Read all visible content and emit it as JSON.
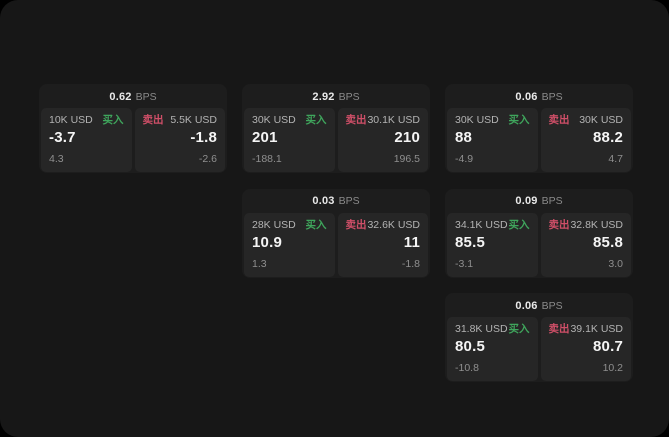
{
  "labels": {
    "bps_unit": "BPS",
    "buy": "买入",
    "sell": "卖出"
  },
  "colors": {
    "window_bg": "#171717",
    "card_bg": "#1d1d1d",
    "panel_bg": "#262626",
    "buy_green": "#3fa55c",
    "sell_red": "#d04f68"
  },
  "cards": [
    {
      "col": 1,
      "row": 1,
      "bps": "0.62",
      "buy": {
        "size": "10K USD",
        "value": "-3.7",
        "sub": "4.3"
      },
      "sell": {
        "size": "5.5K USD",
        "value": "-1.8",
        "sub": "-2.6"
      }
    },
    {
      "col": 2,
      "row": 1,
      "bps": "2.92",
      "buy": {
        "size": "30K USD",
        "value": "201",
        "sub": "-188.1"
      },
      "sell": {
        "size": "30.1K USD",
        "value": "210",
        "sub": "196.5"
      }
    },
    {
      "col": 3,
      "row": 1,
      "bps": "0.06",
      "buy": {
        "size": "30K USD",
        "value": "88",
        "sub": "-4.9"
      },
      "sell": {
        "size": "30K USD",
        "value": "88.2",
        "sub": "4.7"
      }
    },
    {
      "col": 2,
      "row": 2,
      "bps": "0.03",
      "buy": {
        "size": "28K USD",
        "value": "10.9",
        "sub": "1.3"
      },
      "sell": {
        "size": "32.6K USD",
        "value": "11",
        "sub": "-1.8"
      }
    },
    {
      "col": 3,
      "row": 2,
      "bps": "0.09",
      "buy": {
        "size": "34.1K USD",
        "value": "85.5",
        "sub": "-3.1"
      },
      "sell": {
        "size": "32.8K USD",
        "value": "85.8",
        "sub": "3.0"
      }
    },
    {
      "col": 3,
      "row": 3,
      "bps": "0.06",
      "buy": {
        "size": "31.8K USD",
        "value": "80.5",
        "sub": "-10.8"
      },
      "sell": {
        "size": "39.1K USD",
        "value": "80.7",
        "sub": "10.2"
      }
    }
  ]
}
